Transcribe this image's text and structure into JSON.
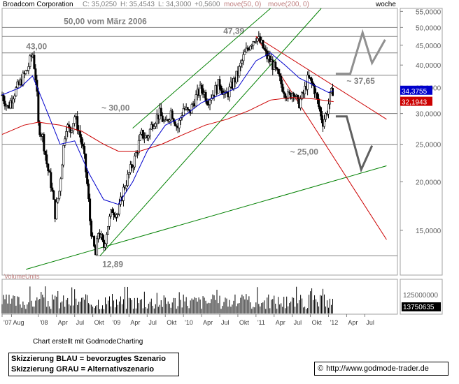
{
  "chart_data": {
    "type": "candlestick",
    "header": {
      "name": "Broadcom Corporation",
      "close": "C: 35,0250",
      "high": "H: 35,4543",
      "low": "L: 34,3000",
      "change": "+0,5600",
      "ma50_label": "move(50, 0)",
      "ma200_label": "move(200, 0)",
      "period": "woche"
    },
    "colors": {
      "ma50": "#0000cc",
      "ma200": "#cc0000",
      "trend_green": "#008000",
      "trend_red": "#cc0000",
      "candle": "#000000",
      "scenario_blue": "#808080",
      "scenario_gray": "#606060"
    },
    "y_axis": {
      "scale": "log",
      "range": [
        11.5,
        56
      ],
      "ticks": [
        55,
        50,
        45,
        40,
        35,
        30,
        25,
        20,
        15
      ],
      "tick_labels": [
        "55,0000",
        "50,0000",
        "45,0000",
        "40,0000",
        "35,0000",
        "30,0000",
        "25,0000",
        "20,0000",
        "15,0000"
      ]
    },
    "x_axis": {
      "range": [
        2007.5,
        2012.95
      ],
      "ticks": [
        {
          "t": 2007.5,
          "label": "'07"
        },
        {
          "t": 2007.63,
          "label": "Aug"
        },
        {
          "t": 2008.0,
          "label": "'08"
        },
        {
          "t": 2008.25,
          "label": "Apr"
        },
        {
          "t": 2008.5,
          "label": "Jul"
        },
        {
          "t": 2008.75,
          "label": "Okt"
        },
        {
          "t": 2009.0,
          "label": "'09"
        },
        {
          "t": 2009.25,
          "label": "Apr"
        },
        {
          "t": 2009.5,
          "label": "Jul"
        },
        {
          "t": 2009.75,
          "label": "Okt"
        },
        {
          "t": 2010.0,
          "label": "'10"
        },
        {
          "t": 2010.25,
          "label": "Apr"
        },
        {
          "t": 2010.5,
          "label": "Jul"
        },
        {
          "t": 2010.75,
          "label": "Okt"
        },
        {
          "t": 2011.0,
          "label": "'11"
        },
        {
          "t": 2011.25,
          "label": "Apr"
        },
        {
          "t": 2011.5,
          "label": "Jul"
        },
        {
          "t": 2011.75,
          "label": "Okt"
        },
        {
          "t": 2012.0,
          "label": "'12"
        },
        {
          "t": 2012.25,
          "label": "Apr"
        },
        {
          "t": 2012.5,
          "label": "Jul"
        }
      ]
    },
    "price_path": [
      [
        2007.5,
        33.5
      ],
      [
        2007.58,
        31.0
      ],
      [
        2007.65,
        33.5
      ],
      [
        2007.75,
        36.0
      ],
      [
        2007.85,
        39.0
      ],
      [
        2007.92,
        43.0
      ],
      [
        2007.97,
        36.0
      ],
      [
        2008.0,
        28.0
      ],
      [
        2008.06,
        26.0
      ],
      [
        2008.12,
        22.0
      ],
      [
        2008.18,
        19.5
      ],
      [
        2008.23,
        16.5
      ],
      [
        2008.29,
        19.0
      ],
      [
        2008.33,
        23.0
      ],
      [
        2008.38,
        28.0
      ],
      [
        2008.44,
        27.0
      ],
      [
        2008.5,
        29.5
      ],
      [
        2008.56,
        27.0
      ],
      [
        2008.62,
        24.0
      ],
      [
        2008.67,
        20.0
      ],
      [
        2008.71,
        16.0
      ],
      [
        2008.75,
        14.0
      ],
      [
        2008.79,
        12.9
      ],
      [
        2008.83,
        15.0
      ],
      [
        2008.9,
        13.5
      ],
      [
        2008.96,
        15.5
      ],
      [
        2009.02,
        17.0
      ],
      [
        2009.1,
        16.5
      ],
      [
        2009.17,
        19.0
      ],
      [
        2009.25,
        21.0
      ],
      [
        2009.33,
        23.0
      ],
      [
        2009.42,
        26.5
      ],
      [
        2009.5,
        26.0
      ],
      [
        2009.58,
        28.5
      ],
      [
        2009.67,
        30.0
      ],
      [
        2009.75,
        28.0
      ],
      [
        2009.83,
        30.5
      ],
      [
        2009.92,
        27.5
      ],
      [
        2010.0,
        31.0
      ],
      [
        2010.08,
        30.0
      ],
      [
        2010.17,
        33.0
      ],
      [
        2010.25,
        35.0
      ],
      [
        2010.33,
        32.5
      ],
      [
        2010.42,
        34.0
      ],
      [
        2010.5,
        36.0
      ],
      [
        2010.58,
        33.0
      ],
      [
        2010.67,
        35.5
      ],
      [
        2010.75,
        38.0
      ],
      [
        2010.83,
        42.0
      ],
      [
        2010.92,
        45.5
      ],
      [
        2011.0,
        47.4
      ],
      [
        2011.08,
        45.0
      ],
      [
        2011.15,
        42.0
      ],
      [
        2011.22,
        40.5
      ],
      [
        2011.3,
        37.5
      ],
      [
        2011.37,
        35.0
      ],
      [
        2011.45,
        33.0
      ],
      [
        2011.52,
        34.5
      ],
      [
        2011.58,
        31.5
      ],
      [
        2011.65,
        33.5
      ],
      [
        2011.72,
        37.0
      ],
      [
        2011.8,
        35.0
      ],
      [
        2011.86,
        31.5
      ],
      [
        2011.92,
        28.5
      ],
      [
        2011.97,
        30.0
      ],
      [
        2012.02,
        33.0
      ],
      [
        2012.07,
        35.0
      ]
    ],
    "ma50_path": [
      [
        2007.5,
        33.5
      ],
      [
        2007.75,
        35.0
      ],
      [
        2007.92,
        37.5
      ],
      [
        2008.1,
        31.0
      ],
      [
        2008.3,
        25.0
      ],
      [
        2008.5,
        25.5
      ],
      [
        2008.7,
        21.0
      ],
      [
        2008.9,
        18.0
      ],
      [
        2009.1,
        17.5
      ],
      [
        2009.3,
        20.0
      ],
      [
        2009.5,
        24.0
      ],
      [
        2009.75,
        28.0
      ],
      [
        2010.0,
        29.5
      ],
      [
        2010.25,
        32.0
      ],
      [
        2010.5,
        33.5
      ],
      [
        2010.75,
        35.0
      ],
      [
        2011.0,
        41.0
      ],
      [
        2011.2,
        43.0
      ],
      [
        2011.4,
        40.0
      ],
      [
        2011.6,
        37.0
      ],
      [
        2011.8,
        35.5
      ],
      [
        2012.0,
        34.0
      ],
      [
        2012.07,
        34.3755
      ]
    ],
    "ma200_path": [
      [
        2007.5,
        26.5
      ],
      [
        2007.8,
        28.0
      ],
      [
        2008.0,
        28.5
      ],
      [
        2008.3,
        28.0
      ],
      [
        2008.6,
        27.0
      ],
      [
        2008.9,
        25.0
      ],
      [
        2009.1,
        24.0
      ],
      [
        2009.4,
        24.0
      ],
      [
        2009.7,
        25.0
      ],
      [
        2010.0,
        26.5
      ],
      [
        2010.3,
        28.0
      ],
      [
        2010.6,
        29.0
      ],
      [
        2010.9,
        30.5
      ],
      [
        2011.2,
        32.5
      ],
      [
        2011.5,
        33.0
      ],
      [
        2011.8,
        32.7
      ],
      [
        2012.07,
        32.1943
      ]
    ],
    "series_end_labels": [
      {
        "value": 34.3755,
        "label": "34,3755",
        "color": "#0000cc"
      },
      {
        "value": 32.1943,
        "label": "32,1943",
        "color": "#cc0000"
      }
    ],
    "horizontal_lines": [
      {
        "value": 50.0,
        "label": "50,00 vom März 2006"
      },
      {
        "value": 47.39,
        "label": "47,39"
      },
      {
        "value": 43.0,
        "label": "43,00"
      },
      {
        "value": 37.65,
        "label": "~ 37,65"
      },
      {
        "value": 30.0,
        "label": "~ 30,00"
      },
      {
        "value": 25.0,
        "label": "~ 25,00"
      },
      {
        "value": 12.89,
        "label": "12,89"
      }
    ],
    "trendlines": [
      {
        "color": "#008000",
        "from": [
          2007.83,
          11.9
        ],
        "to": [
          2012.8,
          22.0
        ]
      },
      {
        "color": "#008000",
        "from": [
          2009.3,
          27.5
        ],
        "to": [
          2011.2,
          56.0
        ]
      },
      {
        "color": "#008000",
        "from": [
          2008.85,
          12.9
        ],
        "to": [
          2011.9,
          56.0
        ]
      },
      {
        "color": "#cc0000",
        "from": [
          2011.0,
          47.39
        ],
        "to": [
          2012.8,
          29.0
        ]
      },
      {
        "color": "#cc0000",
        "from": [
          2011.0,
          47.39
        ],
        "to": [
          2012.8,
          14.2
        ]
      }
    ],
    "scenarios": [
      {
        "name": "blau",
        "color": "#909090",
        "points": [
          [
            2012.1,
            38.0
          ],
          [
            2012.3,
            38.0
          ],
          [
            2012.47,
            48.5
          ],
          [
            2012.6,
            40.5
          ],
          [
            2012.78,
            46.5
          ]
        ]
      },
      {
        "name": "grau",
        "color": "#606060",
        "points": [
          [
            2012.1,
            29.5
          ],
          [
            2012.25,
            29.5
          ],
          [
            2012.45,
            21.5
          ],
          [
            2012.6,
            24.8
          ]
        ]
      }
    ],
    "volume": {
      "label": "VolumeUnits",
      "tick_labels": [
        "125000000",
        "13750635"
      ]
    }
  },
  "footer": {
    "credit": "Chart erstellt mit GodmodeCharting",
    "legend_line1": "Skizzierung BLAU = bevorzugtes Szenario",
    "legend_line2": "Skizzierung GRAU = Alternativszenario",
    "copyright_symbol": "©",
    "url": "http://www.godmode-trader.de"
  }
}
